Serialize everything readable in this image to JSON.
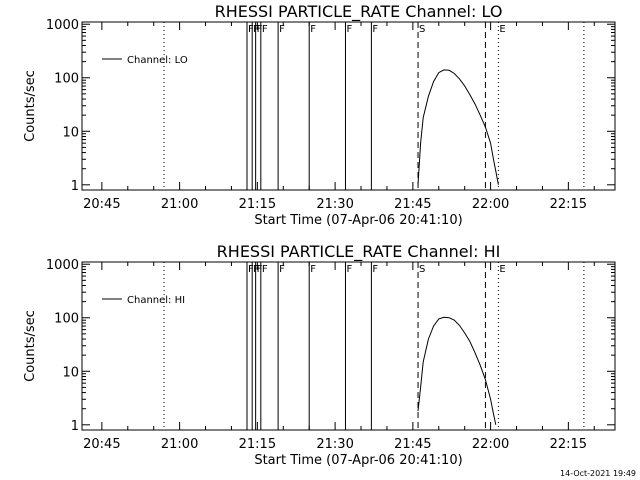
{
  "footer_timestamp": "14-Oct-2021 19:49",
  "chart_data": [
    {
      "type": "line",
      "title": "RHESSI PARTICLE_RATE Channel: LO",
      "xlabel": "Start Time (07-Apr-06 20:41:10)",
      "ylabel": "Counts/sec",
      "x_unit": "time HH:MM (07-Apr-06)",
      "x_ticks": [
        "20:45",
        "21:00",
        "21:15",
        "21:30",
        "21:45",
        "22:00",
        "22:15"
      ],
      "xlim": [
        "20:41:10",
        "22:24:00"
      ],
      "y_ticks": [
        "1",
        "10",
        "100",
        "1000"
      ],
      "ylim": [
        0.8,
        1100
      ],
      "yscale": "log",
      "grid": false,
      "legend": {
        "position": "top-left",
        "entries": [
          "Channel: LO"
        ]
      },
      "series": [
        {
          "name": "Channel: LO",
          "x": [
            "21:46:00",
            "21:46:30",
            "21:47:00",
            "21:48:00",
            "21:49:00",
            "21:50:00",
            "21:51:00",
            "21:52:00",
            "21:53:00",
            "21:54:00",
            "21:55:00",
            "21:56:00",
            "21:57:00",
            "21:58:00",
            "21:59:00",
            "22:00:00",
            "22:00:30",
            "22:01:00",
            "22:01:30"
          ],
          "y": [
            1.0,
            6.0,
            18,
            45,
            85,
            125,
            140,
            138,
            120,
            95,
            70,
            48,
            32,
            20,
            12,
            6.0,
            3.2,
            1.8,
            1.0
          ]
        }
      ],
      "flag_lines": [
        {
          "label": "F",
          "times": [
            "21:13:00",
            "21:14:00",
            "21:14:40",
            "21:15:40",
            "21:19:00",
            "21:25:00",
            "21:32:00",
            "21:37:00"
          ]
        },
        {
          "label": "S",
          "times": [
            "21:46:00",
            "21:59:00"
          ],
          "style": "dashed"
        },
        {
          "label": "E",
          "times": [
            "22:01:30"
          ],
          "style": "dotted"
        },
        {
          "label": "",
          "times": [
            "20:57:00",
            "22:18:00"
          ],
          "style": "dotted"
        }
      ]
    },
    {
      "type": "line",
      "title": "RHESSI PARTICLE_RATE Channel: HI",
      "xlabel": "Start Time (07-Apr-06 20:41:10)",
      "ylabel": "Counts/sec",
      "x_unit": "time HH:MM (07-Apr-06)",
      "x_ticks": [
        "20:45",
        "21:00",
        "21:15",
        "21:30",
        "21:45",
        "22:00",
        "22:15"
      ],
      "xlim": [
        "20:41:10",
        "22:24:00"
      ],
      "y_ticks": [
        "1",
        "10",
        "100",
        "1000"
      ],
      "ylim": [
        0.8,
        1100
      ],
      "yscale": "log",
      "grid": false,
      "legend": {
        "position": "top-left",
        "entries": [
          "Channel: HI"
        ]
      },
      "series": [
        {
          "name": "Channel: HI",
          "x": [
            "21:46:00",
            "21:46:30",
            "21:47:00",
            "21:48:00",
            "21:49:00",
            "21:50:00",
            "21:51:00",
            "21:52:00",
            "21:53:00",
            "21:54:00",
            "21:55:00",
            "21:56:00",
            "21:57:00",
            "21:58:00",
            "21:59:00",
            "22:00:00",
            "22:00:30",
            "22:01:00"
          ],
          "y": [
            1.8,
            5.0,
            15,
            40,
            70,
            95,
            102,
            100,
            90,
            72,
            52,
            36,
            22,
            13,
            7.0,
            3.0,
            1.7,
            1.0
          ]
        }
      ],
      "flag_lines": [
        {
          "label": "F",
          "times": [
            "21:13:00",
            "21:14:00",
            "21:14:40",
            "21:15:40",
            "21:19:00",
            "21:25:00",
            "21:32:00",
            "21:37:00"
          ]
        },
        {
          "label": "S",
          "times": [
            "21:46:00",
            "21:59:00"
          ],
          "style": "dashed"
        },
        {
          "label": "E",
          "times": [
            "22:01:30"
          ],
          "style": "dotted"
        },
        {
          "label": "",
          "times": [
            "20:57:00",
            "22:18:00"
          ],
          "style": "dotted"
        }
      ]
    }
  ]
}
